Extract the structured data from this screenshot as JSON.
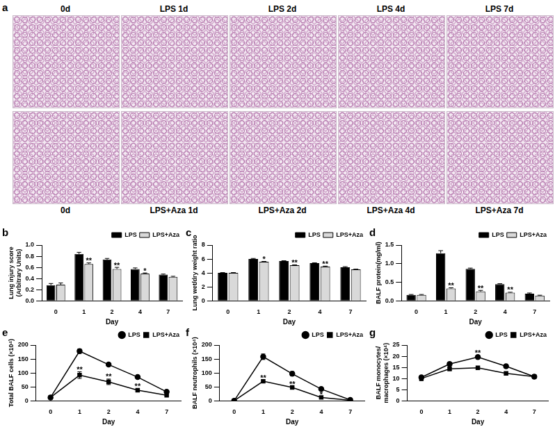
{
  "histology": {
    "panel": "a",
    "top_row": [
      "0d",
      "LPS 1d",
      "LPS 2d",
      "LPS 4d",
      "LPS 7d"
    ],
    "bottom_row": [
      "0d",
      "LPS+Aza 1d",
      "LPS+Aza 2d",
      "LPS+Aza 4d",
      "LPS+Aza 7d"
    ]
  },
  "chart_data": [
    {
      "panel": "b",
      "type": "bar",
      "x_label": "Day",
      "y_label": [
        "Lung injury score",
        "(Arbitrary Units)"
      ],
      "categories": [
        "0",
        "1",
        "2",
        "4",
        "7"
      ],
      "ylim": [
        0,
        1.0
      ],
      "yticks": [
        {
          "value": 0,
          "label": "0.0"
        },
        0.2,
        0.4,
        0.6,
        0.8,
        {
          "value": 1.0,
          "label": "1.0"
        }
      ],
      "grid": false,
      "legend": "upper right",
      "series": [
        {
          "name": "LPS",
          "color": "#000000",
          "values": [
            0.28,
            0.84,
            0.74,
            0.57,
            0.47
          ],
          "errors": [
            0.03,
            0.03,
            0.02,
            0.02,
            0.01
          ],
          "significance": [
            null,
            null,
            null,
            null,
            null
          ]
        },
        {
          "name": "LPS+Aza",
          "color": "#d9d9d9",
          "values": [
            0.29,
            0.66,
            0.57,
            0.49,
            0.43
          ],
          "errors": [
            0.03,
            0.02,
            0.03,
            0.01,
            0.01
          ],
          "significance": [
            null,
            "**",
            "**",
            "*",
            null
          ]
        }
      ]
    },
    {
      "panel": "c",
      "type": "bar",
      "x_label": "Day",
      "y_label": "Lung wet/dry weight ratio",
      "categories": [
        "0",
        "1",
        "2",
        "4",
        "7"
      ],
      "ylim": [
        0,
        8
      ],
      "yticks": [
        0,
        2,
        4,
        6,
        8
      ],
      "grid": false,
      "legend": "upper right",
      "series": [
        {
          "name": "LPS",
          "color": "#000000",
          "values": [
            4.0,
            6.0,
            5.7,
            5.4,
            4.8
          ],
          "errors": [
            0.05,
            0.08,
            0.05,
            0.05,
            0.1
          ],
          "significance": [
            null,
            null,
            null,
            null,
            null
          ]
        },
        {
          "name": "LPS+Aza",
          "color": "#d9d9d9",
          "values": [
            4.0,
            5.6,
            5.1,
            4.9,
            4.5
          ],
          "errors": [
            0.05,
            0.05,
            0.06,
            0.08,
            0.05
          ],
          "significance": [
            null,
            "*",
            "**",
            "**",
            null
          ]
        }
      ]
    },
    {
      "panel": "d",
      "type": "bar",
      "x_label": "Day",
      "y_label": "BALF protein(mg/ml)",
      "categories": [
        "0",
        "1",
        "2",
        "4",
        "7"
      ],
      "ylim": [
        0,
        1.5
      ],
      "yticks": [
        {
          "value": 0,
          "label": "0.0"
        },
        0.5,
        {
          "value": 1.0,
          "label": "1.0"
        },
        1.5
      ],
      "grid": false,
      "legend": "upper right",
      "series": [
        {
          "name": "LPS",
          "color": "#000000",
          "values": [
            0.16,
            1.28,
            0.86,
            0.45,
            0.19
          ],
          "errors": [
            0.01,
            0.07,
            0.02,
            0.01,
            0.02
          ],
          "significance": [
            null,
            null,
            null,
            null,
            null
          ]
        },
        {
          "name": "LPS+Aza",
          "color": "#d9d9d9",
          "values": [
            0.16,
            0.33,
            0.25,
            0.22,
            0.14
          ],
          "errors": [
            0.01,
            0.02,
            0.03,
            0.01,
            0.01
          ],
          "significance": [
            null,
            "**",
            "**",
            "**",
            null
          ]
        }
      ]
    },
    {
      "panel": "e",
      "type": "line",
      "x_label": "Day",
      "y_label": "Total BALF cells (×10⁴)",
      "categories": [
        "0",
        "1",
        "2",
        "4",
        "7"
      ],
      "ylim": [
        0,
        200
      ],
      "yticks": [
        0,
        50,
        100,
        150,
        200
      ],
      "grid": false,
      "legend": "upper right",
      "series": [
        {
          "name": "LPS",
          "color": "#000000",
          "marker": "circle",
          "values": [
            12,
            178,
            130,
            85,
            32
          ],
          "errors": [
            2,
            8,
            6,
            5,
            3
          ],
          "significance": [
            null,
            null,
            null,
            null,
            null
          ]
        },
        {
          "name": "LPS+Aza",
          "color": "#000000",
          "marker": "square",
          "values": [
            12,
            92,
            68,
            38,
            20
          ],
          "errors": [
            2,
            12,
            10,
            5,
            2
          ],
          "significance": [
            null,
            "**",
            "**",
            "**",
            null
          ]
        }
      ]
    },
    {
      "panel": "f",
      "type": "line",
      "x_label": "Day",
      "y_label": "BALF neutrophils (×10⁴)",
      "categories": [
        "0",
        "1",
        "2",
        "4",
        "7"
      ],
      "ylim": [
        0,
        200
      ],
      "yticks": [
        0,
        50,
        100,
        150,
        200
      ],
      "grid": false,
      "legend": "upper right",
      "series": [
        {
          "name": "LPS",
          "color": "#000000",
          "marker": "circle",
          "values": [
            0,
            158,
            97,
            42,
            3
          ],
          "errors": [
            0,
            10,
            8,
            5,
            1
          ],
          "significance": [
            null,
            null,
            null,
            null,
            null
          ]
        },
        {
          "name": "LPS+Aza",
          "color": "#000000",
          "marker": "square",
          "values": [
            0,
            70,
            48,
            12,
            2
          ],
          "errors": [
            0,
            5,
            4,
            2,
            1
          ],
          "significance": [
            null,
            "**",
            "**",
            "*",
            null
          ]
        }
      ]
    },
    {
      "panel": "g",
      "type": "line",
      "x_label": "Day",
      "y_label": [
        "BALF monocytes/",
        "macrophages (×10⁴)"
      ],
      "categories": [
        "0",
        "1",
        "2",
        "4",
        "7"
      ],
      "ylim": [
        0,
        25
      ],
      "yticks": [
        0,
        5,
        10,
        15,
        20,
        25
      ],
      "grid": false,
      "legend": "upper right",
      "series": [
        {
          "name": "LPS",
          "color": "#000000",
          "marker": "circle",
          "values": [
            10.5,
            16.5,
            19.6,
            15.5,
            10.8
          ],
          "errors": [
            0.8,
            0.8,
            0.8,
            0.7,
            0.4
          ],
          "significance": [
            null,
            null,
            "**",
            null,
            null
          ]
        },
        {
          "name": "LPS+Aza",
          "color": "#000000",
          "marker": "square",
          "values": [
            10,
            14.3,
            14.8,
            12.3,
            10.8
          ],
          "errors": [
            1,
            0.8,
            0.6,
            0.7,
            0.3
          ],
          "significance": [
            null,
            null,
            null,
            null,
            null
          ]
        }
      ]
    }
  ]
}
